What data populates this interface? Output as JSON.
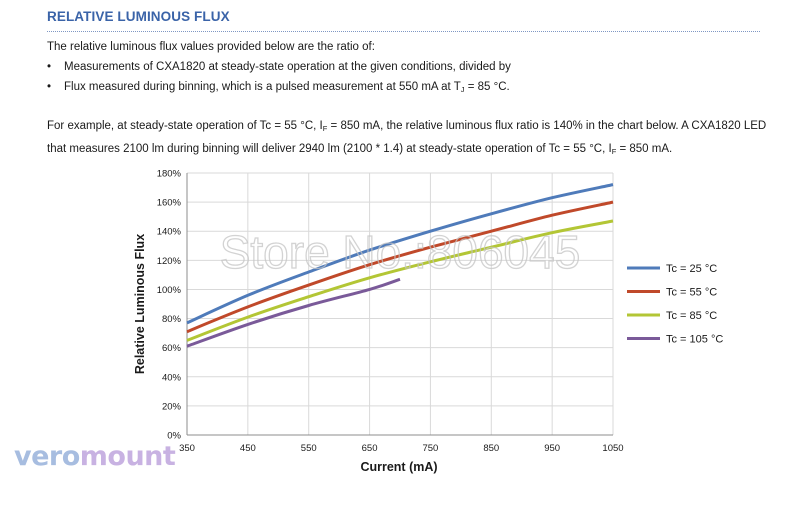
{
  "section_title": "RELATIVE LUMINOUS FLUX",
  "intro": "The relative luminous flux values provided below are the ratio of:",
  "bullets": [
    "Measurements of CXA1820 at steady-state operation at the given conditions, divided by",
    {
      "before": "Flux measured during binning, which is a pulsed measurement at 550 mA at T",
      "sub": "J",
      "after": " = 85 °C."
    }
  ],
  "example": {
    "part1": "For example, at steady-state operation of Tc = 55 °C, I",
    "sub1": "F",
    "part2": " = 850 mA, the relative luminous flux ratio is 140% in the chart below. A CXA1820 LED that measures 2100 lm during binning will deliver 2940 lm (2100 * 1.4) at steady-state operation of Tc = 55 °C, I",
    "sub2": "F",
    "part3": " = 850 mA."
  },
  "watermark": "Store No.:806045",
  "logo": {
    "part1": "vero",
    "part2": "mount"
  },
  "chart_data": {
    "type": "line",
    "xlabel": "Current (mA)",
    "ylabel": "Relative Luminous Flux",
    "xlim": [
      350,
      1050
    ],
    "ylim": [
      0,
      180
    ],
    "x_ticks": [
      350,
      450,
      550,
      650,
      750,
      850,
      950,
      1050
    ],
    "y_ticks": [
      0,
      20,
      40,
      60,
      80,
      100,
      120,
      140,
      160,
      180
    ],
    "y_tick_format": "%",
    "grid": true,
    "legend_position": "right",
    "series": [
      {
        "name": "Tc = 25 °C",
        "color": "#4f7bba",
        "x": [
          350,
          450,
          550,
          650,
          750,
          850,
          950,
          1050
        ],
        "y": [
          77,
          96,
          112,
          127,
          140,
          152,
          163,
          172
        ]
      },
      {
        "name": "Tc = 55 °C",
        "color": "#c0492a",
        "x": [
          350,
          450,
          550,
          650,
          750,
          850,
          950,
          1050
        ],
        "y": [
          71,
          88,
          103,
          117,
          129,
          140,
          151,
          160
        ]
      },
      {
        "name": "Tc = 85 °C",
        "color": "#b3c635",
        "x": [
          350,
          450,
          550,
          650,
          750,
          850,
          950,
          1050
        ],
        "y": [
          65,
          81,
          95,
          108,
          119,
          129,
          139,
          147
        ]
      },
      {
        "name": "Tc = 105 °C",
        "color": "#7a5a99",
        "x": [
          350,
          450,
          550,
          650,
          700
        ],
        "y": [
          61,
          76,
          89,
          100,
          107
        ]
      }
    ]
  }
}
